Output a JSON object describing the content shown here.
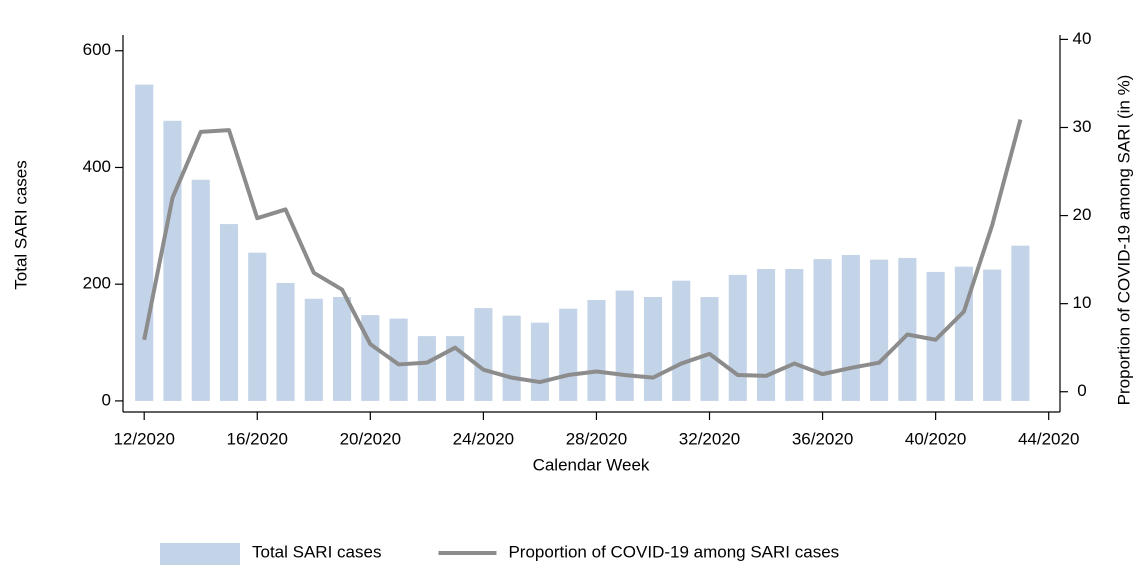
{
  "chart_data": {
    "type": "bar-line",
    "x_label": "Calendar Week",
    "y_label": "Total SARI cases",
    "y2_label": "Proportion of COVID-19 among SARI (in %)",
    "x": [
      12,
      13,
      14,
      15,
      16,
      17,
      18,
      19,
      20,
      21,
      22,
      23,
      24,
      25,
      26,
      27,
      28,
      29,
      30,
      31,
      32,
      33,
      34,
      35,
      36,
      37,
      38,
      39,
      40,
      41,
      42,
      43
    ],
    "xlim": [
      11.25,
      44.4
    ],
    "xticks": [
      {
        "value": 12,
        "label": "12/2020"
      },
      {
        "value": 16,
        "label": "16/2020"
      },
      {
        "value": 20,
        "label": "20/2020"
      },
      {
        "value": 24,
        "label": "24/2020"
      },
      {
        "value": 28,
        "label": "28/2020"
      },
      {
        "value": 32,
        "label": "32/2020"
      },
      {
        "value": 36,
        "label": "36/2020"
      },
      {
        "value": 40,
        "label": "40/2020"
      },
      {
        "value": 44,
        "label": "44/2020"
      }
    ],
    "ylim": [
      -19,
      627
    ],
    "yticks": [
      0,
      200,
      400,
      600
    ],
    "y2lim": [
      -2.3,
      40.5
    ],
    "y2ticks": [
      0,
      10,
      20,
      30,
      40
    ],
    "series": [
      {
        "name": "Total SARI cases",
        "type": "bar",
        "color": "#c3d3e8",
        "values": [
          542,
          480,
          379,
          303,
          254,
          202,
          175,
          178,
          147,
          141,
          111,
          111,
          159,
          146,
          134,
          158,
          173,
          189,
          178,
          206,
          178,
          216,
          226,
          226,
          243,
          250,
          242,
          245,
          221,
          230,
          225,
          266
        ]
      },
      {
        "name": "Proportion of COVID-19 among SARI cases",
        "type": "line",
        "axis": "y2",
        "color": "#8c8c8c",
        "values": [
          5.9,
          22.0,
          29.5,
          29.7,
          19.7,
          20.7,
          13.5,
          11.6,
          5.4,
          3.1,
          3.3,
          5.0,
          2.5,
          1.6,
          1.1,
          1.9,
          2.3,
          1.9,
          1.6,
          3.2,
          4.3,
          1.9,
          1.8,
          3.2,
          2.0,
          2.7,
          3.3,
          6.5,
          5.9,
          9.1,
          18.9,
          30.9
        ]
      }
    ]
  }
}
